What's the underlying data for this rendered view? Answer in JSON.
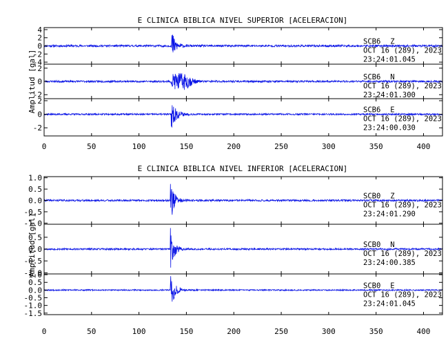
{
  "chart_data": [
    {
      "type": "line",
      "title": "E CLINICA BIBLICA NIVEL SUPERIOR [ACELERACION]",
      "ylabel": "Amplitud [gal]",
      "xlim": [
        0,
        420
      ],
      "xticks": [
        "0",
        "50",
        "100",
        "150",
        "200",
        "250",
        "300",
        "350",
        "400"
      ],
      "trace_color": "#0a14e6",
      "series": [
        {
          "station": "SCB6",
          "component": "Z",
          "date": "OCT 16 (289), 2023",
          "time": "23:24:01.045",
          "ylim": [
            -4.5,
            4.5
          ],
          "yticks": [
            "4",
            "2",
            "0",
            "-2",
            "-4"
          ],
          "noise": 0.25,
          "onset": 134,
          "peak": 4.2,
          "decay": 4,
          "coda": [],
          "seed": 11
        },
        {
          "station": "SCB6",
          "component": "N",
          "date": "OCT 16 (289), 2023",
          "time": "23:24:01.300",
          "ylim": [
            -2.6,
            2.6
          ],
          "yticks": [
            "2",
            "0",
            "-2"
          ],
          "noise": 0.14,
          "onset": 134,
          "peak": 1.5,
          "decay": 8,
          "coda": [
            [
              148,
              0.9,
              6
            ]
          ],
          "seed": 23
        },
        {
          "station": "SCB6",
          "component": "E",
          "date": "OCT 16 (289), 2023",
          "time": "23:24:00.030",
          "ylim": [
            -3.2,
            2.3
          ],
          "yticks": [
            "2",
            "0",
            "-2"
          ],
          "noise": 0.12,
          "onset": 134,
          "peak": 2.2,
          "decay": 5,
          "coda": [],
          "seed": 37
        }
      ]
    },
    {
      "type": "line",
      "title": "E CLINICA BIBLICA NIVEL INFERIOR [ACELERACION]",
      "ylabel": "Amplitud [gal]",
      "xlim": [
        0,
        420
      ],
      "xticks": [
        "0",
        "50",
        "100",
        "150",
        "200",
        "250",
        "300",
        "350",
        "400"
      ],
      "trace_color": "#0a14e6",
      "series": [
        {
          "station": "SCB0",
          "component": "Z",
          "date": "OCT 16 (289), 2023",
          "time": "23:24:01.290",
          "ylim": [
            -1.05,
            1.05
          ],
          "yticks": [
            "1.0",
            "0.5",
            "0.0",
            "-0.5",
            "-1.0"
          ],
          "noise": 0.04,
          "onset": 133,
          "peak": 1.0,
          "decay": 4,
          "coda": [],
          "seed": 41
        },
        {
          "station": "SCB0",
          "component": "N",
          "date": "OCT 16 (289), 2023",
          "time": "23:24:00.385",
          "ylim": [
            -1.05,
            1.05
          ],
          "yticks": [
            "0.5",
            "0.0",
            "-0.5",
            "-1.0"
          ],
          "noise": 0.035,
          "onset": 133,
          "peak": 0.9,
          "decay": 4,
          "coda": [],
          "seed": 53
        },
        {
          "station": "SCB0",
          "component": "E",
          "date": "OCT 16 (289), 2023",
          "time": "23:24:01.045",
          "ylim": [
            -1.6,
            1.05
          ],
          "yticks": [
            "1.0",
            "0.5",
            "0.0",
            "-0.5",
            "-1.0",
            "-1.5"
          ],
          "noise": 0.04,
          "onset": 133,
          "peak": 1.45,
          "decay": 4,
          "coda": [],
          "seed": 67
        }
      ]
    }
  ]
}
